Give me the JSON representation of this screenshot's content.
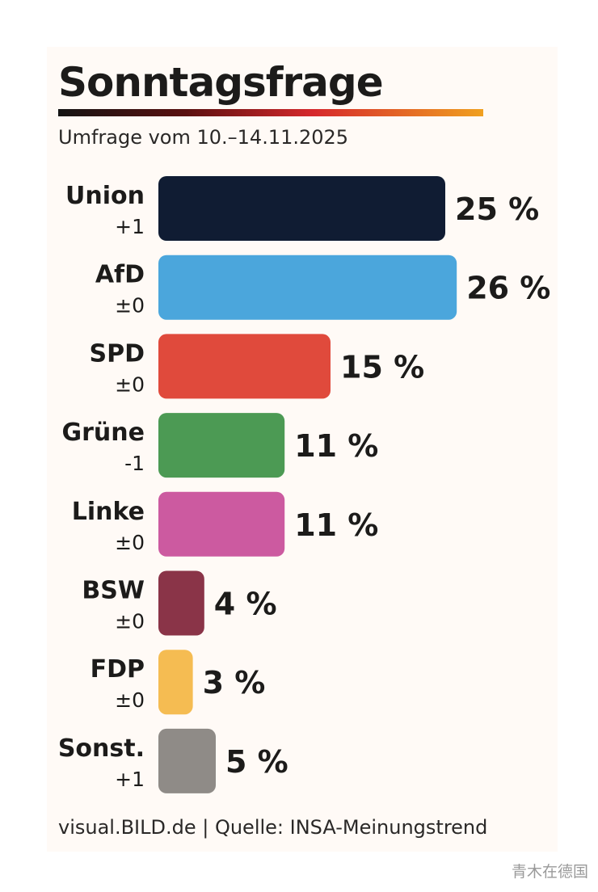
{
  "title": "Sonntagsfrage",
  "subtitle": "Umfrage vom 10.–14.11.2025",
  "footer": "visual.BILD.de | Quelle: INSA-Meinungstrend",
  "watermark": "青木在德国",
  "chart_data": {
    "type": "bar",
    "orientation": "horizontal",
    "title": "Sonntagsfrage",
    "subtitle": "Umfrage vom 10.–14.11.2025",
    "unit": "%",
    "grid": false,
    "legend": "none",
    "xlim": [
      0,
      26
    ],
    "categories": [
      "Union",
      "AfD",
      "SPD",
      "Grüne",
      "Linke",
      "BSW",
      "FDP",
      "Sonst."
    ],
    "changes": [
      "+1",
      "±0",
      "±0",
      "-1",
      "±0",
      "±0",
      "±0",
      "+1"
    ],
    "values": [
      25,
      26,
      15,
      11,
      11,
      4,
      3,
      5
    ],
    "value_labels": [
      "25 %",
      "26 %",
      "15 %",
      "11 %",
      "11 %",
      "4 %",
      "3 %",
      "5 %"
    ],
    "colors": [
      "#101c33",
      "#4ba6dc",
      "#e04a3c",
      "#4c9a54",
      "#cc5aa0",
      "#8a3448",
      "#f5bc52",
      "#8f8b87"
    ]
  }
}
